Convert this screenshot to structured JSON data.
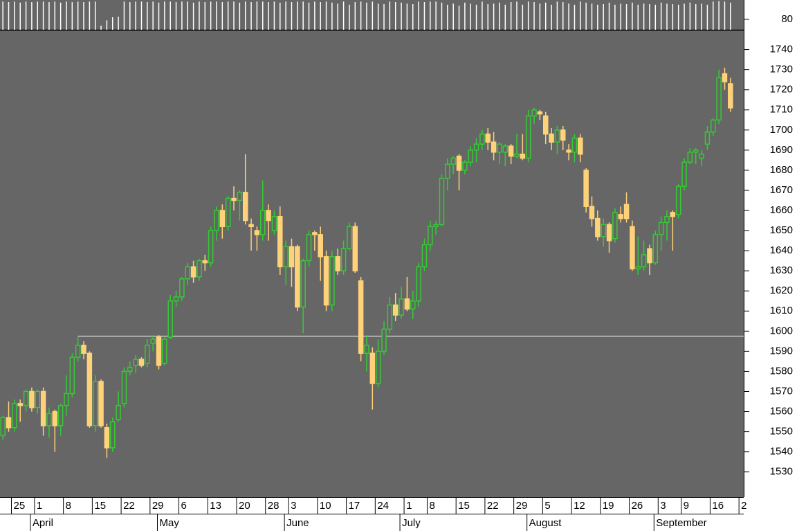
{
  "chart_data": {
    "type": "candlestick",
    "open": [
      1548,
      1557,
      1552,
      1564,
      1563,
      1570,
      1562,
      1570,
      1553,
      1560,
      1553,
      1563,
      1569,
      1587,
      1593,
      1589,
      1553,
      1575,
      1552,
      1542,
      1556,
      1564,
      1580,
      1583,
      1586,
      1584,
      1594,
      1597,
      1584,
      1597,
      1615,
      1617,
      1626,
      1632,
      1627,
      1635,
      1634,
      1650,
      1660,
      1652,
      1666,
      1665,
      1669,
      1653,
      1650,
      1648,
      1660,
      1650,
      1657,
      1632,
      1642,
      1642,
      1612,
      1635,
      1649,
      1648,
      1637,
      1613,
      1637,
      1630,
      1641,
      1652,
      1625,
      1589,
      1589,
      1574,
      1590,
      1601,
      1613,
      1608,
      1616,
      1611,
      1615,
      1632,
      1643,
      1652,
      1653,
      1676,
      1683,
      1687,
      1680,
      1684,
      1690,
      1693,
      1698,
      1694,
      1689,
      1689,
      1692,
      1687,
      1688,
      1686,
      1707,
      1709,
      1707,
      1698,
      1694,
      1700,
      1690,
      1689,
      1696,
      1680,
      1662,
      1656,
      1647,
      1653,
      1646,
      1658,
      1663,
      1652,
      1631,
      1632,
      1641,
      1634,
      1648,
      1654,
      1659,
      1658,
      1672,
      1684,
      1689,
      1686,
      1693,
      1699,
      1705,
      1728,
      1723
    ],
    "high": [
      1558,
      1565,
      1566,
      1566,
      1571,
      1572,
      1571,
      1572,
      1562,
      1561,
      1564,
      1578,
      1589,
      1597,
      1595,
      1590,
      1578,
      1576,
      1554,
      1557,
      1570,
      1582,
      1585,
      1588,
      1587,
      1596,
      1598,
      1598,
      1597,
      1618,
      1620,
      1627,
      1634,
      1635,
      1636,
      1638,
      1652,
      1662,
      1663,
      1667,
      1672,
      1670,
      1688,
      1656,
      1652,
      1675,
      1663,
      1660,
      1662,
      1645,
      1646,
      1643,
      1636,
      1650,
      1650,
      1652,
      1640,
      1640,
      1641,
      1645,
      1654,
      1654,
      1627,
      1598,
      1592,
      1596,
      1605,
      1617,
      1619,
      1622,
      1627,
      1620,
      1634,
      1646,
      1655,
      1655,
      1678,
      1686,
      1687,
      1688,
      1685,
      1692,
      1696,
      1700,
      1701,
      1699,
      1694,
      1693,
      1693,
      1698,
      1698,
      1710,
      1711,
      1710,
      1709,
      1701,
      1702,
      1702,
      1693,
      1698,
      1698,
      1681,
      1667,
      1660,
      1656,
      1654,
      1661,
      1662,
      1669,
      1655,
      1647,
      1645,
      1643,
      1650,
      1657,
      1660,
      1660,
      1673,
      1686,
      1691,
      1691,
      1690,
      1702,
      1706,
      1730,
      1731,
      1726
    ],
    "low": [
      1546,
      1550,
      1550,
      1555,
      1560,
      1560,
      1559,
      1548,
      1547,
      1540,
      1548,
      1558,
      1567,
      1585,
      1586,
      1552,
      1550,
      1552,
      1537,
      1540,
      1555,
      1562,
      1578,
      1579,
      1582,
      1582,
      1590,
      1581,
      1583,
      1596,
      1612,
      1615,
      1623,
      1624,
      1625,
      1630,
      1632,
      1645,
      1646,
      1650,
      1660,
      1655,
      1653,
      1640,
      1640,
      1645,
      1645,
      1648,
      1628,
      1623,
      1622,
      1610,
      1599,
      1632,
      1640,
      1625,
      1610,
      1610,
      1628,
      1628,
      1640,
      1629,
      1585,
      1580,
      1561,
      1572,
      1588,
      1599,
      1605,
      1606,
      1610,
      1606,
      1612,
      1630,
      1640,
      1648,
      1652,
      1670,
      1678,
      1670,
      1678,
      1682,
      1684,
      1690,
      1690,
      1685,
      1683,
      1682,
      1683,
      1686,
      1685,
      1684,
      1703,
      1705,
      1693,
      1690,
      1688,
      1690,
      1685,
      1684,
      1684,
      1659,
      1652,
      1645,
      1642,
      1639,
      1644,
      1654,
      1654,
      1630,
      1628,
      1630,
      1628,
      1633,
      1640,
      1645,
      1640,
      1656,
      1670,
      1683,
      1683,
      1682,
      1690,
      1697,
      1703,
      1720,
      1709
    ],
    "close": [
      1557,
      1552,
      1564,
      1563,
      1570,
      1562,
      1570,
      1553,
      1559,
      1553,
      1563,
      1569,
      1587,
      1593,
      1589,
      1553,
      1575,
      1553,
      1542,
      1555,
      1563,
      1580,
      1582,
      1586,
      1583,
      1593,
      1596,
      1583,
      1596,
      1615,
      1617,
      1626,
      1632,
      1627,
      1635,
      1634,
      1650,
      1660,
      1652,
      1666,
      1665,
      1669,
      1655,
      1652,
      1648,
      1660,
      1655,
      1657,
      1632,
      1642,
      1632,
      1612,
      1635,
      1648,
      1648,
      1637,
      1613,
      1637,
      1630,
      1641,
      1652,
      1630,
      1589,
      1593,
      1574,
      1590,
      1601,
      1613,
      1608,
      1616,
      1611,
      1615,
      1632,
      1643,
      1652,
      1653,
      1676,
      1683,
      1686,
      1680,
      1684,
      1690,
      1693,
      1698,
      1694,
      1689,
      1693,
      1692,
      1687,
      1688,
      1686,
      1707,
      1710,
      1708,
      1698,
      1694,
      1700,
      1695,
      1689,
      1696,
      1688,
      1662,
      1656,
      1647,
      1653,
      1645,
      1659,
      1656,
      1656,
      1631,
      1632,
      1638,
      1634,
      1648,
      1654,
      1657,
      1657,
      1672,
      1684,
      1689,
      1690,
      1688,
      1699,
      1705,
      1726,
      1724,
      1711
    ],
    "volume": [
      114,
      113,
      114,
      112,
      114,
      113,
      114,
      114,
      113,
      114,
      112,
      114,
      113,
      114,
      113,
      114,
      114,
      68,
      78,
      84,
      85,
      114,
      113,
      114,
      114,
      113,
      114,
      112,
      114,
      114,
      113,
      114,
      114,
      112,
      114,
      113,
      114,
      114,
      113,
      114,
      114,
      112,
      114,
      113,
      114,
      114,
      113,
      114,
      112,
      114,
      113,
      114,
      114,
      112,
      114,
      113,
      114,
      112,
      110,
      114,
      108,
      113,
      114,
      112,
      114,
      110,
      109,
      114,
      113,
      112,
      110,
      109,
      114,
      113,
      114,
      114,
      112,
      108,
      110,
      106,
      112,
      110,
      108,
      114,
      109,
      110,
      112,
      108,
      113,
      114,
      108,
      114,
      113,
      110,
      112,
      108,
      114,
      113,
      110,
      108,
      114,
      112,
      110,
      108,
      109,
      112,
      108,
      110,
      109,
      112,
      108,
      110,
      109,
      108,
      112,
      110,
      109,
      108,
      110,
      112,
      109,
      110,
      108,
      114,
      115,
      114,
      112
    ],
    "ylim": [
      1517.5,
      1749.5
    ],
    "yticks": [
      1530,
      1540,
      1550,
      1560,
      1570,
      1580,
      1590,
      1600,
      1610,
      1620,
      1630,
      1640,
      1650,
      1660,
      1670,
      1680,
      1690,
      1700,
      1710,
      1720,
      1730,
      1740
    ],
    "volume_ylim": [
      60,
      117
    ],
    "volume_yticks": [
      80
    ],
    "xlim": [
      -0.5,
      128.3
    ],
    "xticks": [
      {
        "value": 1,
        "label": "25"
      },
      {
        "value": 5,
        "label": "1"
      },
      {
        "value": 10,
        "label": "8"
      },
      {
        "value": 15,
        "label": "15"
      },
      {
        "value": 20,
        "label": "22"
      },
      {
        "value": 25,
        "label": "29"
      },
      {
        "value": 30,
        "label": "6"
      },
      {
        "value": 35,
        "label": "13"
      },
      {
        "value": 40,
        "label": "20"
      },
      {
        "value": 45,
        "label": "28"
      },
      {
        "value": 49,
        "label": "3"
      },
      {
        "value": 54,
        "label": "10"
      },
      {
        "value": 59,
        "label": "17"
      },
      {
        "value": 64,
        "label": "24"
      },
      {
        "value": 69,
        "label": "1"
      },
      {
        "value": 73,
        "label": "8"
      },
      {
        "value": 78,
        "label": "15"
      },
      {
        "value": 83,
        "label": "22"
      },
      {
        "value": 88,
        "label": "29"
      },
      {
        "value": 93,
        "label": "5"
      },
      {
        "value": 98,
        "label": "12"
      },
      {
        "value": 103,
        "label": "19"
      },
      {
        "value": 108,
        "label": "26"
      },
      {
        "value": 113,
        "label": "3"
      },
      {
        "value": 117,
        "label": "9"
      },
      {
        "value": 122,
        "label": "16"
      },
      {
        "value": 127,
        "label": "2"
      }
    ],
    "month_ticks": [
      {
        "value": 5,
        "label": "April"
      },
      {
        "value": 27,
        "label": "May"
      },
      {
        "value": 49,
        "label": "June"
      },
      {
        "value": 69,
        "label": "July"
      },
      {
        "value": 91,
        "label": "August"
      },
      {
        "value": 113,
        "label": "September"
      }
    ],
    "reference_line": {
      "value": 1597.5,
      "start": 13,
      "color": "#c8c8c8"
    },
    "up_color": "#33cc33",
    "down_color": "#ffd27a",
    "volume_color": "#ffffff",
    "background": "#666666"
  }
}
